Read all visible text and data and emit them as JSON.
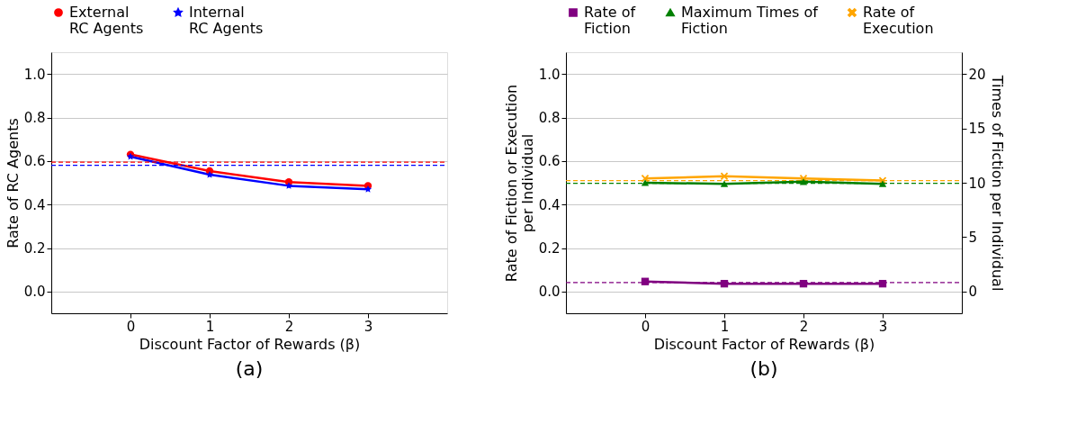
{
  "chart_data": [
    {
      "type": "line",
      "xlabel": "Discount Factor of Rewards (β)",
      "ylabel": "Rate of RC Agents",
      "x": [
        0,
        1,
        2,
        3
      ],
      "xlim": [
        -1,
        4
      ],
      "xticks": [
        0,
        1,
        2,
        3
      ],
      "ylim": [
        -0.1,
        1.1
      ],
      "yticks": [
        {
          "value": 0,
          "label": "0.0"
        },
        {
          "value": 0.2,
          "label": "0.2"
        },
        {
          "value": 0.4,
          "label": "0.4"
        },
        {
          "value": 0.6,
          "label": "0.6"
        },
        {
          "value": 0.8,
          "label": "0.8"
        },
        {
          "value": 1,
          "label": "1.0"
        }
      ],
      "grid": "y",
      "legend": "top",
      "annotations": [
        "(a)"
      ],
      "series": [
        {
          "name": "External\n RC Agents",
          "color": "#ff0000",
          "marker": "circle",
          "values": [
            0.63,
            0.554,
            0.503,
            0.486
          ]
        },
        {
          "name": "Internal\n RC Agents",
          "color": "#0000ff",
          "marker": "star",
          "values": [
            0.62,
            0.537,
            0.486,
            0.47
          ]
        }
      ],
      "ref_lines": [
        {
          "axis": "y",
          "value": 0.595,
          "color": "#ff0000",
          "line_style": "dashed"
        },
        {
          "axis": "y",
          "value": 0.58,
          "color": "#0000ff",
          "line_style": "dashed"
        }
      ]
    },
    {
      "type": "line",
      "xlabel": "Discount Factor of Rewards (β)",
      "ylabel": "Rate of Fiction or Execution\nper Individual",
      "y2label": "Times of Fiction per Individual",
      "x": [
        0,
        1,
        2,
        3
      ],
      "xlim": [
        -1,
        4
      ],
      "xticks": [
        0,
        1,
        2,
        3
      ],
      "ylim": [
        -0.1,
        1.1
      ],
      "yticks": [
        {
          "value": 0,
          "label": "0.0"
        },
        {
          "value": 0.2,
          "label": "0.2"
        },
        {
          "value": 0.4,
          "label": "0.4"
        },
        {
          "value": 0.6,
          "label": "0.6"
        },
        {
          "value": 0.8,
          "label": "0.8"
        },
        {
          "value": 1,
          "label": "1.0"
        }
      ],
      "y2lim": [
        -2,
        22
      ],
      "y2ticks": [
        0,
        5,
        10,
        15,
        20
      ],
      "grid": "y",
      "legend": "top",
      "annotations": [
        "(b)"
      ],
      "series": [
        {
          "name": "Rate of\n Fiction",
          "color": "#800080",
          "marker": "square",
          "values": [
            0.046,
            0.036,
            0.036,
            0.036
          ]
        },
        {
          "name": "Maximum Times of\n Fiction",
          "color": "#008000",
          "marker": "triangle",
          "axis": "y2",
          "values": [
            10.0,
            9.9,
            10.1,
            9.9
          ]
        },
        {
          "name": "Rate of\n Execution",
          "color": "#ffa500",
          "marker": "cross",
          "values": [
            0.52,
            0.53,
            0.52,
            0.51
          ]
        }
      ],
      "ref_lines": [
        {
          "axis": "y",
          "value": 0.041,
          "color": "#800080",
          "line_style": "dashed"
        },
        {
          "axis": "y2",
          "value": 9.95,
          "color": "#008000",
          "line_style": "dashed"
        },
        {
          "axis": "y",
          "value": 0.51,
          "color": "#ffa500",
          "line_style": "dashed"
        }
      ]
    }
  ]
}
